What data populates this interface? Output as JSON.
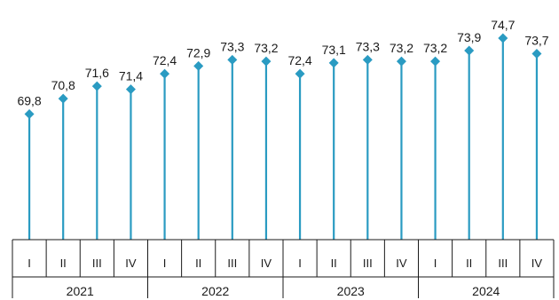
{
  "chart_data": {
    "type": "lollipop",
    "title": "",
    "xlabel": "",
    "ylabel": "",
    "years": [
      "2021",
      "2022",
      "2023",
      "2024"
    ],
    "quarters": [
      "I",
      "II",
      "III",
      "IV"
    ],
    "categories": [
      "2021 I",
      "2021 II",
      "2021 III",
      "2021 IV",
      "2022 I",
      "2022 II",
      "2022 III",
      "2022 IV",
      "2023 I",
      "2023 II",
      "2023 III",
      "2023 IV",
      "2024 I",
      "2024 II",
      "2024 III",
      "2024 IV"
    ],
    "values": [
      69.8,
      70.8,
      71.6,
      71.4,
      72.4,
      72.9,
      73.3,
      73.2,
      72.4,
      73.1,
      73.3,
      73.2,
      73.2,
      73.9,
      74.7,
      73.7
    ],
    "value_labels": [
      "69,8",
      "70,8",
      "71,6",
      "71,4",
      "72,4",
      "72,9",
      "73,3",
      "73,2",
      "72,4",
      "73,1",
      "73,3",
      "73,2",
      "73,2",
      "73,9",
      "74,7",
      "73,7"
    ],
    "ylim": [
      61.7,
      75.1
    ],
    "y_axis_shown": false,
    "grid": false,
    "legend": "none",
    "colors": {
      "series": "#2a9bc2",
      "axis": "#1a1a1a"
    }
  }
}
